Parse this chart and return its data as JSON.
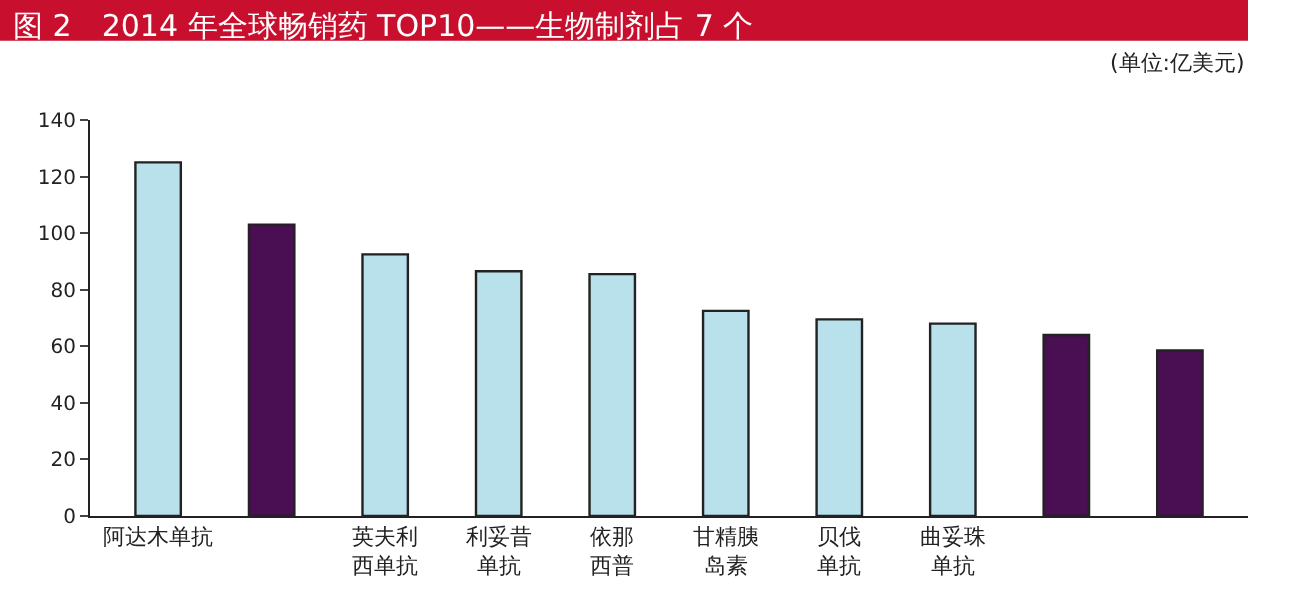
{
  "chart_data": {
    "type": "bar",
    "title": "图 2　2014 年全球畅销药 TOP10——生物制剂占 7 个",
    "annotations": [
      "(单位:亿美元)"
    ],
    "categories": [
      "阿达木单抗",
      null,
      "英夫利西单抗",
      "利妥昔单抗",
      "依那西普",
      "甘精胰岛素",
      "贝伐单抗",
      "曲妥珠单抗",
      null,
      null
    ],
    "values": [
      125,
      103,
      92.5,
      86.5,
      85.5,
      72.5,
      69.5,
      68,
      64,
      58.5
    ],
    "colors": [
      "#b9e1ec",
      "#4a0e52",
      "#b9e1ec",
      "#b9e1ec",
      "#b9e1ec",
      "#b9e1ec",
      "#b9e1ec",
      "#b9e1ec",
      "#4a0e52",
      "#4a0e52"
    ],
    "ylim": [
      0,
      140
    ],
    "yticks": [
      0,
      20,
      40,
      60,
      80,
      100,
      120,
      140
    ]
  }
}
